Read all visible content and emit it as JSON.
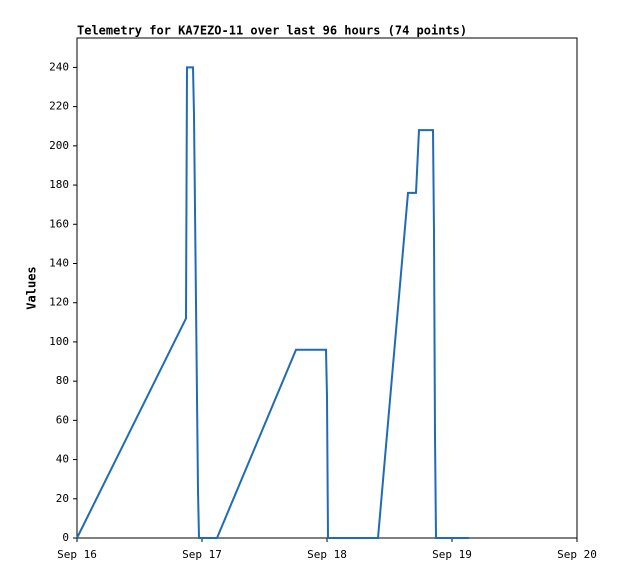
{
  "chart_data": {
    "type": "line",
    "title": "Telemetry for KA7EZO-11 over last 96 hours (74 points)",
    "y_label": "Values",
    "x": [
      0,
      0.872,
      0.88,
      0.928,
      0.936,
      0.944,
      0.952,
      0.96,
      0.968,
      0.976,
      1.12,
      1.752,
      1.992,
      2.0,
      2.008,
      2.408,
      2.648,
      2.712,
      2.736,
      2.848,
      2.856,
      2.864,
      2.872,
      3.136
    ],
    "series": [
      {
        "name": "Values",
        "color": "#1f6bb5",
        "values": [
          0,
          112,
          240,
          240,
          216,
          168,
          120,
          72,
          24,
          0,
          0,
          96,
          96,
          72,
          0,
          0,
          176,
          176,
          208,
          208,
          156,
          52,
          0,
          0
        ]
      }
    ],
    "xlim": [
      0,
      4
    ],
    "xticks": [
      {
        "value": 0,
        "label": "Sep 16"
      },
      {
        "value": 1,
        "label": "Sep 17"
      },
      {
        "value": 2,
        "label": "Sep 18"
      },
      {
        "value": 3,
        "label": "Sep 19"
      },
      {
        "value": 4,
        "label": "Sep 20"
      }
    ],
    "ylim": [
      0,
      255
    ],
    "yticks": [
      0,
      20,
      40,
      60,
      80,
      100,
      120,
      140,
      160,
      180,
      200,
      220,
      240
    ]
  }
}
